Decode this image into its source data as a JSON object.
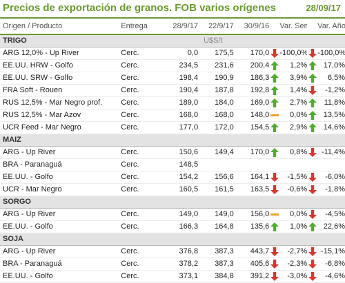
{
  "header": {
    "title": "Precios de exportación de granos. FOB varios orígenes",
    "date": "28/09/17"
  },
  "columns": {
    "name": "Origen / Producto",
    "entrega": "Entrega",
    "d1": "28/9/17",
    "d2": "22/9/17",
    "d3": "30/9/16",
    "var_sem": "Var. Sem.",
    "var_anio": "Var. Año"
  },
  "unit": "U$S/t",
  "colors": {
    "accent": "#6a9a2e",
    "up": "#4caf2a",
    "down": "#e0342b",
    "flat": "#f0a020"
  },
  "sections": [
    {
      "title": "TRIGO",
      "show_unit": true,
      "rows": [
        {
          "name": "ARG 12,0% - Up River",
          "entrega": "Cerc.",
          "v1": "0,0",
          "v2": "175,5",
          "v3": "170,0",
          "i1": "down",
          "sem": "-100,0%",
          "i2": "down",
          "anio": "-100,0%"
        },
        {
          "name": "EE.UU. HRW - Golfo",
          "entrega": "Cerc.",
          "v1": "234,5",
          "v2": "231,6",
          "v3": "200,4",
          "i1": "up",
          "sem": "1,2%",
          "i2": "up",
          "anio": "17,0%"
        },
        {
          "name": "EE.UU. SRW - Golfo",
          "entrega": "Cerc.",
          "v1": "198,4",
          "v2": "190,9",
          "v3": "186,3",
          "i1": "up",
          "sem": "3,9%",
          "i2": "up",
          "anio": "6,5%"
        },
        {
          "name": "FRA Soft - Rouen",
          "entrega": "Cerc.",
          "v1": "190,4",
          "v2": "187,8",
          "v3": "192,8",
          "i1": "up",
          "sem": "1,4%",
          "i2": "down",
          "anio": "-1,2%"
        },
        {
          "name": "RUS 12,5% - Mar Negro prof.",
          "entrega": "Cerc.",
          "v1": "189,0",
          "v2": "184,0",
          "v3": "169,0",
          "i1": "up",
          "sem": "2,7%",
          "i2": "up",
          "anio": "11,8%"
        },
        {
          "name": "RUS 12,5% - Mar Azov",
          "entrega": "Cerc.",
          "v1": "168,0",
          "v2": "168,0",
          "v3": "148,0",
          "i1": "flat",
          "sem": "0,0%",
          "i2": "up",
          "anio": "13,5%"
        },
        {
          "name": "UCR Feed - Mar Negro",
          "entrega": "Cerc.",
          "v1": "177,0",
          "v2": "172,0",
          "v3": "154,5",
          "i1": "up",
          "sem": "2,9%",
          "i2": "up",
          "anio": "14,6%"
        }
      ]
    },
    {
      "title": "MAIZ",
      "show_unit": false,
      "rows": [
        {
          "name": "ARG - Up River",
          "entrega": "Cerc.",
          "v1": "150,6",
          "v2": "149,4",
          "v3": "170,0",
          "i1": "up",
          "sem": "0,8%",
          "i2": "down",
          "anio": "-11,4%"
        },
        {
          "name": "BRA - Paranaguá",
          "entrega": "Cerc.",
          "v1": "148,5",
          "v2": "",
          "v3": "",
          "i1": "",
          "sem": "",
          "i2": "",
          "anio": ""
        },
        {
          "name": "EE.UU. - Golfo",
          "entrega": "Cerc.",
          "v1": "154,2",
          "v2": "156,6",
          "v3": "164,1",
          "i1": "down",
          "sem": "-1,5%",
          "i2": "down",
          "anio": "-6,0%"
        },
        {
          "name": "UCR - Mar Negro",
          "entrega": "Cerc.",
          "v1": "160,5",
          "v2": "161,5",
          "v3": "163,5",
          "i1": "down",
          "sem": "-0,6%",
          "i2": "down",
          "anio": "-1,8%"
        }
      ]
    },
    {
      "title": "SORGO",
      "show_unit": false,
      "rows": [
        {
          "name": "ARG - Up River",
          "entrega": "Cerc.",
          "v1": "149,0",
          "v2": "149,0",
          "v3": "156,0",
          "i1": "flat",
          "sem": "0,0%",
          "i2": "down",
          "anio": "-4,5%"
        },
        {
          "name": "EE.UU. - Golfo",
          "entrega": "Cerc.",
          "v1": "166,3",
          "v2": "164,8",
          "v3": "135,6",
          "i1": "up",
          "sem": "1,0%",
          "i2": "up",
          "anio": "22,6%"
        }
      ]
    },
    {
      "title": "SOJA",
      "show_unit": false,
      "rows": [
        {
          "name": "ARG - Up River",
          "entrega": "Cerc.",
          "v1": "376,8",
          "v2": "387,3",
          "v3": "443,7",
          "i1": "down",
          "sem": "-2,7%",
          "i2": "down",
          "anio": "-15,1%"
        },
        {
          "name": "BRA - Paranaguá",
          "entrega": "Cerc.",
          "v1": "378,2",
          "v2": "387,3",
          "v3": "405,6",
          "i1": "down",
          "sem": "-2,3%",
          "i2": "down",
          "anio": "-6,8%"
        },
        {
          "name": "EE.UU. - Golfo",
          "entrega": "Cerc.",
          "v1": "373,1",
          "v2": "384,8",
          "v3": "391,2",
          "i1": "down",
          "sem": "-3,0%",
          "i2": "down",
          "anio": "-4,6%"
        }
      ]
    }
  ]
}
